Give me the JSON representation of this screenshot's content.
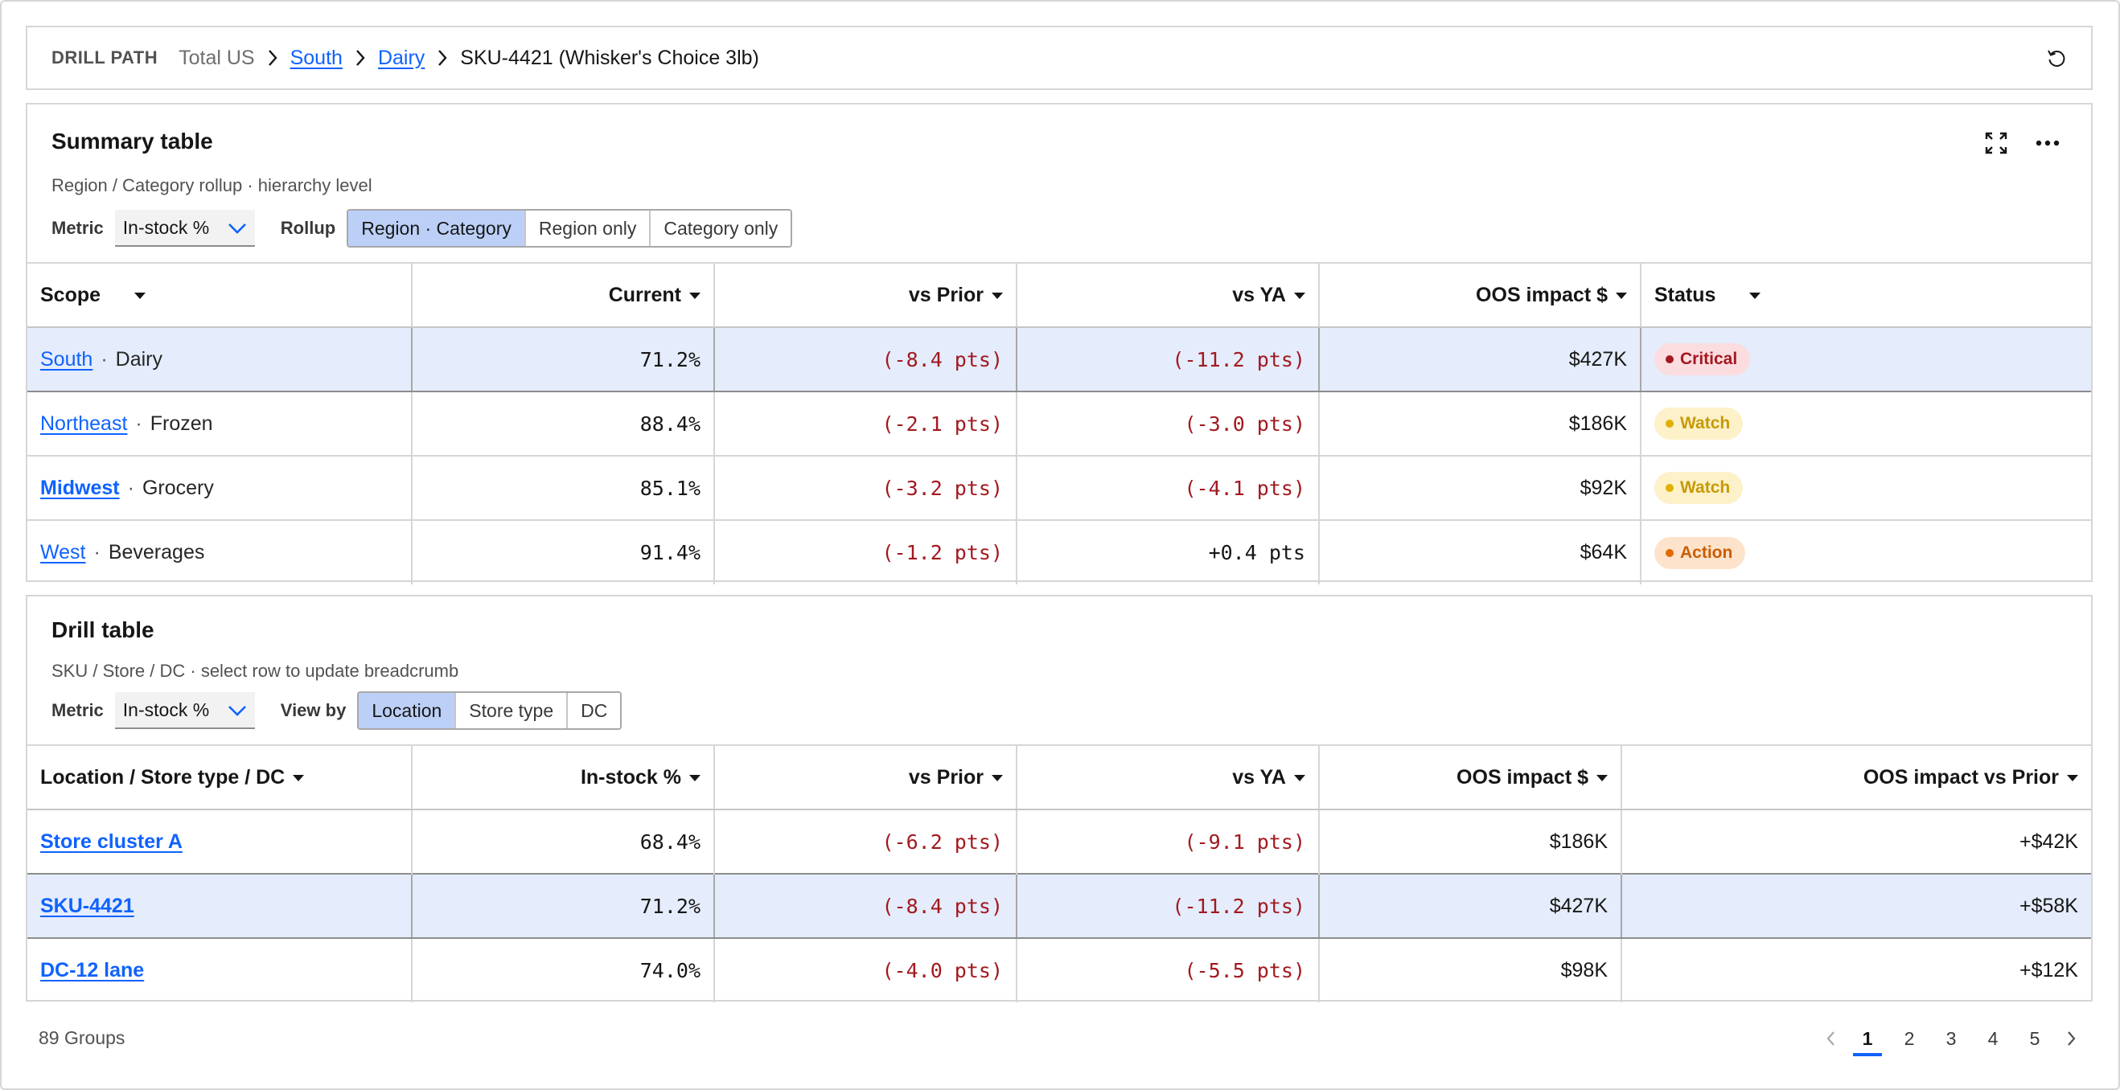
{
  "breadcrumb": {
    "label": "DRILL PATH",
    "root": "Total US",
    "links": [
      "South",
      "Dairy"
    ],
    "current": "SKU-4421 (Whisker's Choice 3lb)"
  },
  "summary": {
    "title": "Summary table",
    "subtitle": "Region / Category rollup · hierarchy level",
    "metric_label": "Metric",
    "metric_value": "In-stock %",
    "rollup_label": "Rollup",
    "rollup_options": [
      "Region · Category",
      "Region only",
      "Category only"
    ],
    "columns": [
      "Scope",
      "Current",
      "vs Prior",
      "vs YA",
      "OOS impact $",
      "Status"
    ],
    "rows": [
      {
        "region": "South",
        "category": "Dairy",
        "current": "71.2%",
        "vs_prior": "(-8.4 pts)",
        "vs_ya": "(-11.2 pts)",
        "oos": "$427K",
        "status": "Critical"
      },
      {
        "region": "Northeast",
        "category": "Frozen",
        "current": "88.4%",
        "vs_prior": "(-2.1 pts)",
        "vs_ya": "(-3.0 pts)",
        "oos": "$186K",
        "status": "Watch"
      },
      {
        "region": "Midwest",
        "category": "Grocery",
        "current": "85.1%",
        "vs_prior": "(-3.2 pts)",
        "vs_ya": "(-4.1 pts)",
        "oos": "$92K",
        "status": "Watch"
      },
      {
        "region": "West",
        "category": "Beverages",
        "current": "91.4%",
        "vs_prior": "(-1.2 pts)",
        "vs_ya": "+0.4 pts",
        "oos": "$64K",
        "status": "Action"
      }
    ]
  },
  "drill": {
    "title": "Drill table",
    "subtitle": "SKU / Store / DC · select row to update breadcrumb",
    "metric_label": "Metric",
    "metric_value": "In-stock %",
    "viewby_label": "View by",
    "viewby_options": [
      "Location",
      "Store type",
      "DC"
    ],
    "columns": [
      "Location / Store type / DC",
      "In-stock %",
      "vs Prior",
      "vs YA",
      "OOS impact $",
      "OOS impact vs Prior"
    ],
    "rows": [
      {
        "name": "Store cluster A",
        "instock": "68.4%",
        "vs_prior": "(-6.2 pts)",
        "vs_ya": "(-9.1 pts)",
        "oos": "$186K",
        "oos_vs_prior": "+$42K"
      },
      {
        "name": "SKU-4421",
        "instock": "71.2%",
        "vs_prior": "(-8.4 pts)",
        "vs_ya": "(-11.2 pts)",
        "oos": "$427K",
        "oos_vs_prior": "+$58K"
      },
      {
        "name": "DC-12 lane",
        "instock": "74.0%",
        "vs_prior": "(-4.0 pts)",
        "vs_ya": "(-5.5 pts)",
        "oos": "$98K",
        "oos_vs_prior": "+$12K"
      }
    ]
  },
  "footer": {
    "groups": "89 Groups",
    "pages": [
      "1",
      "2",
      "3",
      "4",
      "5"
    ],
    "current_page": "1"
  },
  "colors": {
    "link": "#0f62fe",
    "negative": "#a2191f",
    "selected_row": "#e5ecfb",
    "segment_active": "#bcd0f7",
    "critical_bg": "#fbdde0",
    "critical_fg": "#a2191f",
    "watch_bg": "#fcf1c9",
    "watch_fg": "#c79a06",
    "action_bg": "#fde3cc",
    "action_fg": "#c95c00"
  },
  "icons": {
    "breadcrumb_separator": "chevron-right-icon",
    "reset": "reset-icon",
    "expand": "expand-icon",
    "more": "overflow-menu-icon",
    "select": "chevron-down-icon",
    "sort": "caret-down-icon",
    "prev": "chevron-left-icon",
    "next": "chevron-right-icon"
  }
}
